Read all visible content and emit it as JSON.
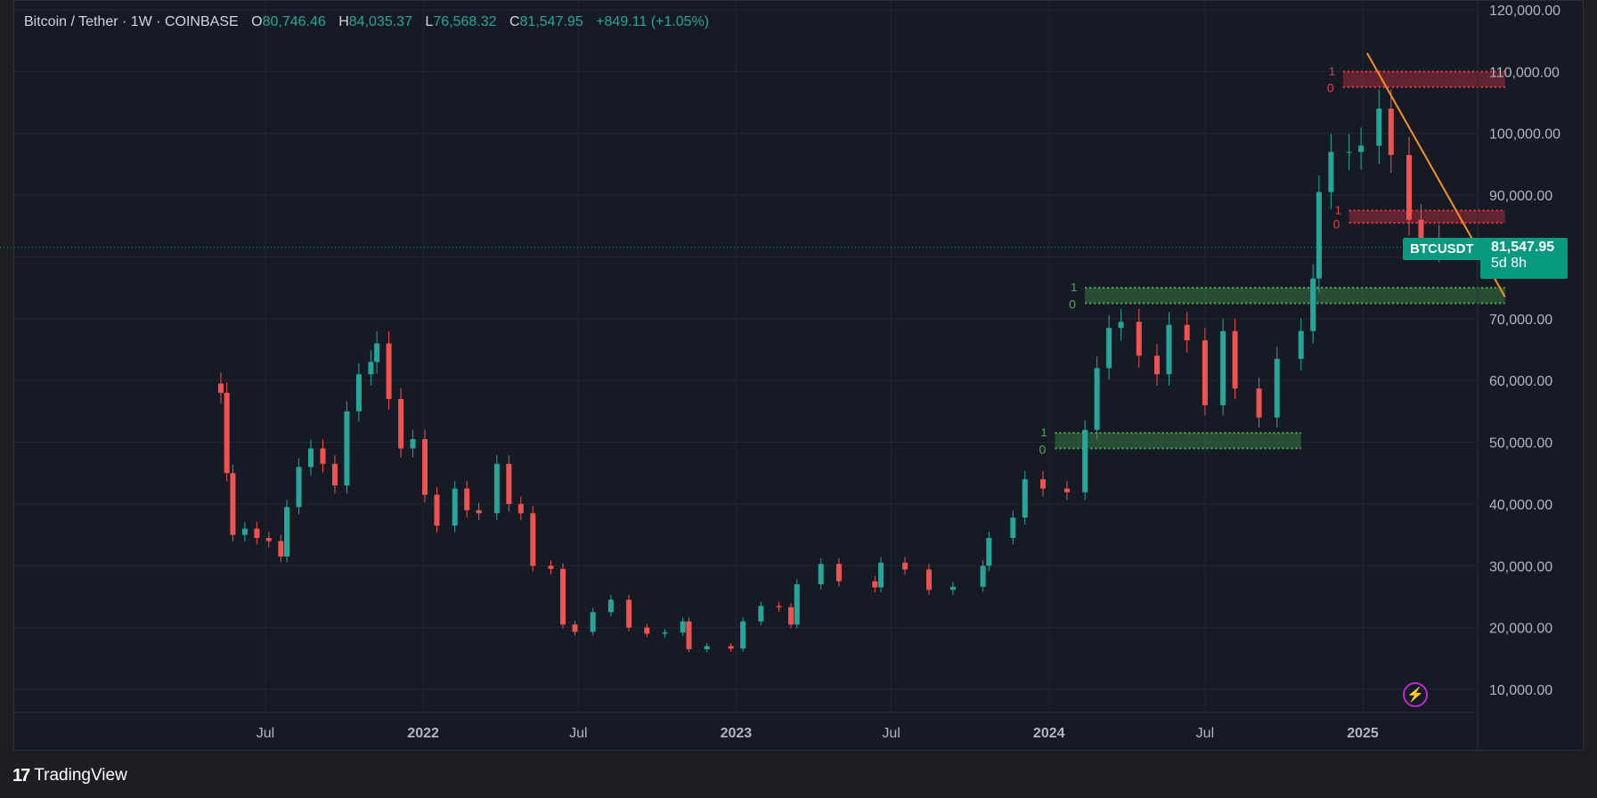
{
  "header": {
    "symbol": "Bitcoin / Tether · 1W · COINBASE",
    "open_label": "O",
    "open": "80,746.46",
    "high_label": "H",
    "high": "84,035.37",
    "low_label": "L",
    "low": "76,568.32",
    "close_label": "C",
    "close": "81,547.95",
    "change": "+849.11 (+1.05%)"
  },
  "price_tag": {
    "symbol": "BTCUSDT",
    "price": "81,547.95",
    "countdown": "5d 8h"
  },
  "footer": {
    "brand": "TradingView",
    "logo": "17"
  },
  "flash_icon": "lightning-icon",
  "colors": {
    "up": "#26a69a",
    "down": "#ef5350",
    "trendline": "#f7931a",
    "support": "#4caf50",
    "resistance": "#f23645",
    "background": "#161a25"
  },
  "chart_data": {
    "type": "candlestick",
    "title": "Bitcoin / Tether · 1W · COINBASE",
    "ylim": [
      5000,
      120000
    ],
    "y_ticks": [
      "120,000.00",
      "110,000.00",
      "100,000.00",
      "90,000.00",
      "80,000.00",
      "70,000.00",
      "60,000.00",
      "50,000.00",
      "40,000.00",
      "30,000.00",
      "20,000.00",
      "10,000.00"
    ],
    "y_tick_values": [
      120000,
      110000,
      100000,
      90000,
      80000,
      70000,
      60000,
      50000,
      40000,
      30000,
      20000,
      10000
    ],
    "x_ticks": [
      {
        "label": "Jul",
        "date": "2021-07-01"
      },
      {
        "label": "2022",
        "date": "2022-01-01"
      },
      {
        "label": "Jul",
        "date": "2022-07-01"
      },
      {
        "label": "2023",
        "date": "2023-01-01"
      },
      {
        "label": "Jul",
        "date": "2023-07-01"
      },
      {
        "label": "2024",
        "date": "2024-01-01"
      },
      {
        "label": "Jul",
        "date": "2024-07-01"
      },
      {
        "label": "2025",
        "date": "2025-01-01"
      }
    ],
    "x_range": [
      "2020-12-01",
      "2025-06-20"
    ],
    "current_price": 81547.95,
    "series": [
      {
        "date": "2021-05-10",
        "close": 58000
      },
      {
        "date": "2021-05-17",
        "close": 45000
      },
      {
        "date": "2021-05-24",
        "close": 35000
      },
      {
        "date": "2021-06-07",
        "close": 36000
      },
      {
        "date": "2021-06-21",
        "close": 34500
      },
      {
        "date": "2021-07-05",
        "close": 34000
      },
      {
        "date": "2021-07-19",
        "close": 31500
      },
      {
        "date": "2021-07-26",
        "close": 39500
      },
      {
        "date": "2021-08-09",
        "close": 46000
      },
      {
        "date": "2021-08-23",
        "close": 49000
      },
      {
        "date": "2021-09-06",
        "close": 46500
      },
      {
        "date": "2021-09-20",
        "close": 43000
      },
      {
        "date": "2021-10-04",
        "close": 55000
      },
      {
        "date": "2021-10-18",
        "close": 61000
      },
      {
        "date": "2021-11-01",
        "close": 63000
      },
      {
        "date": "2021-11-08",
        "close": 66000
      },
      {
        "date": "2021-11-22",
        "close": 57000
      },
      {
        "date": "2021-12-06",
        "close": 49000
      },
      {
        "date": "2021-12-20",
        "close": 50500
      },
      {
        "date": "2022-01-03",
        "close": 41500
      },
      {
        "date": "2022-01-17",
        "close": 36500
      },
      {
        "date": "2022-02-07",
        "close": 42500
      },
      {
        "date": "2022-02-21",
        "close": 39000
      },
      {
        "date": "2022-03-07",
        "close": 38500
      },
      {
        "date": "2022-03-28",
        "close": 46500
      },
      {
        "date": "2022-04-11",
        "close": 40000
      },
      {
        "date": "2022-04-25",
        "close": 38500
      },
      {
        "date": "2022-05-09",
        "close": 30000
      },
      {
        "date": "2022-05-30",
        "close": 29500
      },
      {
        "date": "2022-06-13",
        "close": 20500
      },
      {
        "date": "2022-06-27",
        "close": 19300
      },
      {
        "date": "2022-07-18",
        "close": 22500
      },
      {
        "date": "2022-08-08",
        "close": 24500
      },
      {
        "date": "2022-08-29",
        "close": 20000
      },
      {
        "date": "2022-09-19",
        "close": 19000
      },
      {
        "date": "2022-10-10",
        "close": 19200
      },
      {
        "date": "2022-10-31",
        "close": 21000
      },
      {
        "date": "2022-11-07",
        "close": 16500
      },
      {
        "date": "2022-11-28",
        "close": 17000
      },
      {
        "date": "2022-12-26",
        "close": 16600
      },
      {
        "date": "2023-01-09",
        "close": 21000
      },
      {
        "date": "2023-01-30",
        "close": 23500
      },
      {
        "date": "2023-02-20",
        "close": 23300
      },
      {
        "date": "2023-03-06",
        "close": 20500
      },
      {
        "date": "2023-03-13",
        "close": 27000
      },
      {
        "date": "2023-04-10",
        "close": 30300
      },
      {
        "date": "2023-05-01",
        "close": 27500
      },
      {
        "date": "2023-06-12",
        "close": 26500
      },
      {
        "date": "2023-06-19",
        "close": 30500
      },
      {
        "date": "2023-07-17",
        "close": 29400
      },
      {
        "date": "2023-08-14",
        "close": 26100
      },
      {
        "date": "2023-09-11",
        "close": 26600
      },
      {
        "date": "2023-10-16",
        "close": 30000
      },
      {
        "date": "2023-10-23",
        "close": 34500
      },
      {
        "date": "2023-11-20",
        "close": 37800
      },
      {
        "date": "2023-12-04",
        "close": 44000
      },
      {
        "date": "2023-12-25",
        "close": 42500
      },
      {
        "date": "2024-01-22",
        "close": 41900
      },
      {
        "date": "2024-02-12",
        "close": 52000
      },
      {
        "date": "2024-02-26",
        "close": 62000
      },
      {
        "date": "2024-03-11",
        "close": 68500
      },
      {
        "date": "2024-03-25",
        "close": 69500
      },
      {
        "date": "2024-04-15",
        "close": 64000
      },
      {
        "date": "2024-05-06",
        "close": 61000
      },
      {
        "date": "2024-05-20",
        "close": 69000
      },
      {
        "date": "2024-06-10",
        "close": 66500
      },
      {
        "date": "2024-07-01",
        "close": 56000
      },
      {
        "date": "2024-07-22",
        "close": 68000
      },
      {
        "date": "2024-08-05",
        "close": 58700
      },
      {
        "date": "2024-09-02",
        "close": 54000
      },
      {
        "date": "2024-09-23",
        "close": 63500
      },
      {
        "date": "2024-10-21",
        "close": 68000
      },
      {
        "date": "2024-11-04",
        "close": 76500
      },
      {
        "date": "2024-11-11",
        "close": 90500
      },
      {
        "date": "2024-11-25",
        "close": 97000
      },
      {
        "date": "2024-12-16",
        "close": 97000
      },
      {
        "date": "2024-12-30",
        "close": 98000
      },
      {
        "date": "2025-01-20",
        "close": 104000
      },
      {
        "date": "2025-02-03",
        "close": 96500
      },
      {
        "date": "2025-02-24",
        "close": 86000
      },
      {
        "date": "2025-03-10",
        "close": 82700
      },
      {
        "date": "2025-03-31",
        "close": 81547.95
      }
    ],
    "annotations": {
      "resistance_zones": [
        {
          "from": "2024-12-09",
          "to": "2025-06-16",
          "low": 107500,
          "high": 110000
        },
        {
          "from": "2024-12-16",
          "to": "2025-06-16",
          "low": 85500,
          "high": 87500
        }
      ],
      "support_zones": [
        {
          "from": "2024-02-12",
          "to": "2025-06-16",
          "low": 72500,
          "high": 75000
        },
        {
          "from": "2024-01-08",
          "to": "2024-10-21",
          "low": 49000,
          "high": 51500
        }
      ],
      "level_markers": [
        "1",
        "0"
      ],
      "trendline": {
        "from_date": "2025-01-06",
        "from_price": 113000,
        "to_date": "2025-06-16",
        "to_price": 73500
      }
    }
  }
}
